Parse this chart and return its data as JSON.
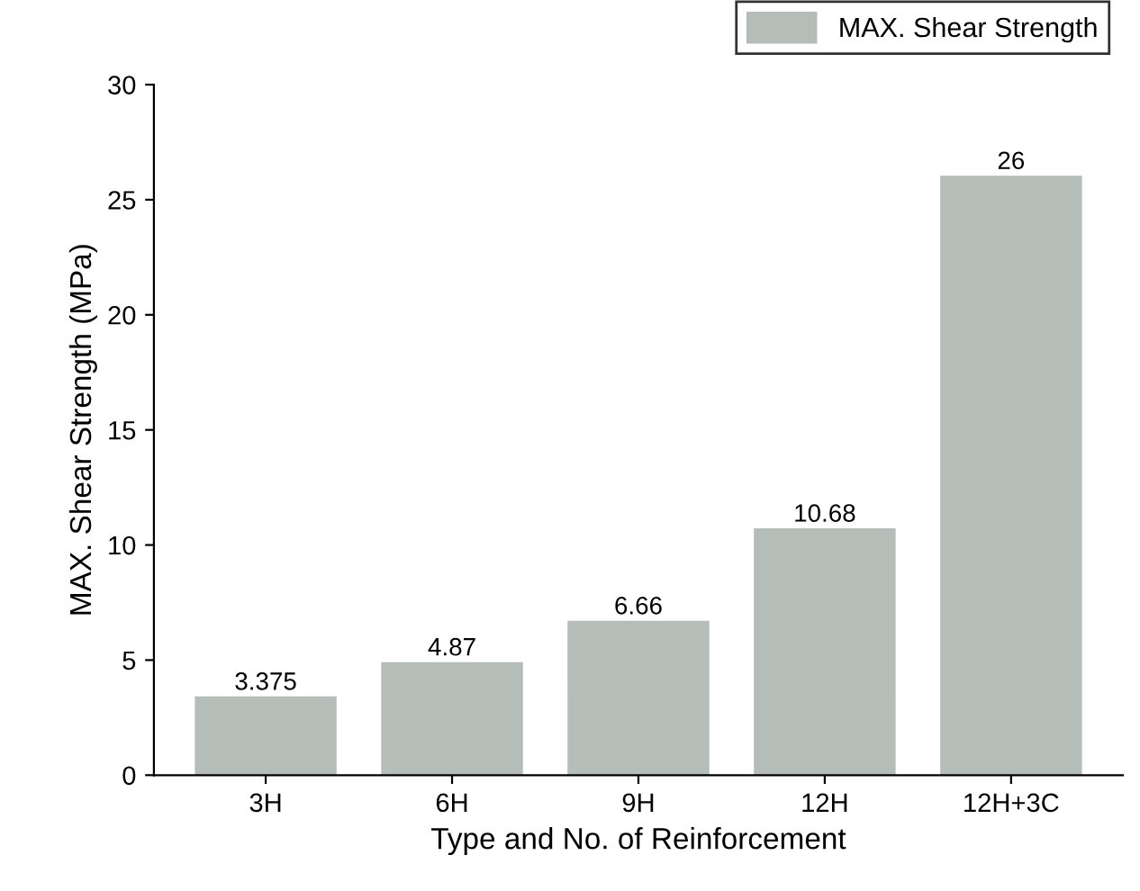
{
  "chart_data": {
    "type": "bar",
    "xlabel": "Type and No. of Reinforcement",
    "ylabel": "MAX. Shear Strength (MPa)",
    "categories": [
      "3H",
      "6H",
      "9H",
      "12H",
      "12H+3C"
    ],
    "series": [
      {
        "name": "MAX. Shear Strength",
        "color": "#b5bdb9",
        "values": [
          3.375,
          4.87,
          6.66,
          10.68,
          26
        ]
      }
    ],
    "ylim": [
      0,
      30
    ],
    "yticks": [
      0,
      5,
      10,
      15,
      20,
      25,
      30
    ],
    "data_labels": true,
    "legend": "top right",
    "grid": false
  }
}
